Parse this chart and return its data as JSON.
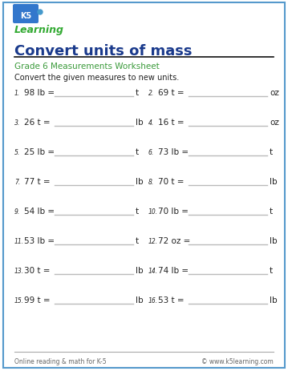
{
  "title": "Convert units of mass",
  "subtitle": "Grade 6 Measurements Worksheet",
  "instruction": "Convert the given measures to new units.",
  "title_color": "#1a3a8c",
  "subtitle_color": "#3a9a3a",
  "border_color": "#5599cc",
  "problems": [
    {
      "num": 1,
      "left": "98 lb =",
      "right": "t",
      "col": 0
    },
    {
      "num": 2,
      "left": "69 t =",
      "right": "oz",
      "col": 1
    },
    {
      "num": 3,
      "left": "26 t =",
      "right": "lb",
      "col": 0
    },
    {
      "num": 4,
      "left": "16 t =",
      "right": "oz",
      "col": 1
    },
    {
      "num": 5,
      "left": "25 lb =",
      "right": "t",
      "col": 0
    },
    {
      "num": 6,
      "left": "73 lb =",
      "right": "t",
      "col": 1
    },
    {
      "num": 7,
      "left": "77 t =",
      "right": "lb",
      "col": 0
    },
    {
      "num": 8,
      "left": "70 t =",
      "right": "lb",
      "col": 1
    },
    {
      "num": 9,
      "left": "54 lb =",
      "right": "t",
      "col": 0
    },
    {
      "num": 10,
      "left": "70 lb =",
      "right": "t",
      "col": 1
    },
    {
      "num": 11,
      "left": "53 lb =",
      "right": "t",
      "col": 0
    },
    {
      "num": 12,
      "left": "72 oz =",
      "right": "lb",
      "col": 1
    },
    {
      "num": 13,
      "left": "30 t =",
      "right": "lb",
      "col": 0
    },
    {
      "num": 14,
      "left": "74 lb =",
      "right": "t",
      "col": 1
    },
    {
      "num": 15,
      "left": "99 t =",
      "right": "lb",
      "col": 0
    },
    {
      "num": 16,
      "left": "53 t =",
      "right": "lb",
      "col": 1
    }
  ],
  "footer_left": "Online reading & math for K-5",
  "footer_right": "© www.k5learning.com",
  "bg_color": "#ffffff",
  "line_color": "#bbbbbb",
  "text_color": "#222222",
  "logo_box_color": "#3377cc",
  "logo_text_color": "#ffffff",
  "logo_green_color": "#33aa33",
  "title_line_color": "#111111",
  "footer_line_color": "#aaaaaa",
  "footer_text_color": "#666666"
}
